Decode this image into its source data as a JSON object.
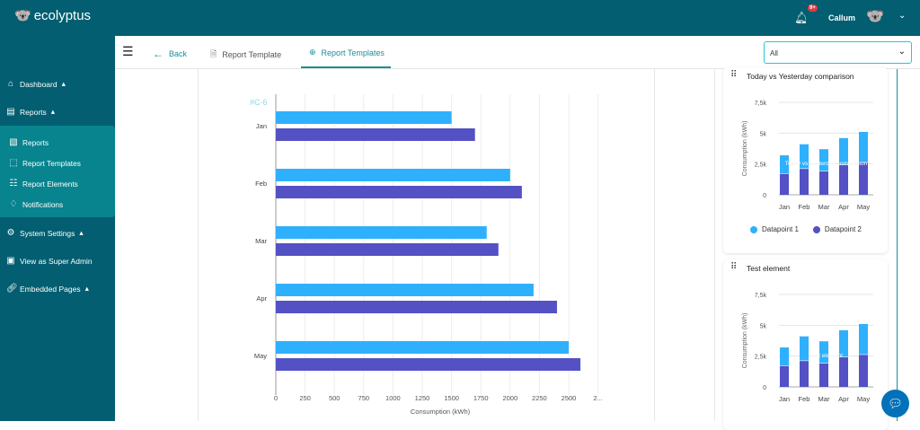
{
  "app": {
    "name": "ecolyptus",
    "user": "Callum",
    "notification_badge": "9+"
  },
  "sidebar": {
    "items": [
      {
        "label": "Dashboard",
        "icon": "home-icon"
      },
      {
        "label": "Reports",
        "icon": "report-icon"
      },
      {
        "label": "System Settings",
        "icon": "gear-icon"
      },
      {
        "label": "View as Super Admin",
        "icon": "badge-icon"
      },
      {
        "label": "Embedded Pages",
        "icon": "link-icon"
      }
    ],
    "sub_items": [
      {
        "label": "Reports",
        "icon": "report-file-icon"
      },
      {
        "label": "Report Templates",
        "icon": "template-icon"
      },
      {
        "label": "Report Elements",
        "icon": "list-icon"
      },
      {
        "label": "Notifications",
        "icon": "bell-icon"
      }
    ]
  },
  "toolbar": {
    "back": "Back",
    "report_template": "Report Template",
    "report_templates": "Report Templates",
    "filter_value": "All"
  },
  "colors": {
    "brand": "#025e70",
    "datapoint1": "#2eb0fd",
    "datapoint2": "#5351c4"
  },
  "chart_data": [
    {
      "type": "bar",
      "orientation": "horizontal",
      "element_id": "#C-6",
      "categories": [
        "Jan",
        "Feb",
        "Mar",
        "Apr",
        "May"
      ],
      "series": [
        {
          "values": [
            1500,
            2000,
            1800,
            2200,
            2500
          ]
        },
        {
          "values": [
            1700,
            2100,
            1900,
            2400,
            2600
          ]
        }
      ],
      "xlabel": "Consumption (kWh)",
      "xticks": [
        "0",
        "250",
        "500",
        "750",
        "1000",
        "1250",
        "1500",
        "1750",
        "2000",
        "2250",
        "2500",
        "2..."
      ],
      "xlim": [
        0,
        2750
      ],
      "grid": true
    },
    {
      "type": "bar",
      "stacked": true,
      "title": "Today vs Yesterday comparison",
      "watermark": "Today vs Yesterday comparison",
      "categories": [
        "Jan",
        "Feb",
        "Mar",
        "Apr",
        "May"
      ],
      "series": [
        {
          "name": "Datapoint 1",
          "values": [
            1500,
            2000,
            1800,
            2200,
            2500
          ]
        },
        {
          "name": "Datapoint 2",
          "values": [
            1700,
            2100,
            1900,
            2400,
            2600
          ]
        }
      ],
      "ylabel": "Consumption (kWh)",
      "yticks": [
        "0",
        "2,5k",
        "5k",
        "7,5k"
      ],
      "ylim": [
        0,
        7500
      ],
      "legend": "bottom"
    },
    {
      "type": "bar",
      "stacked": true,
      "title": "Test element",
      "watermark": "Test element",
      "categories": [
        "Jan",
        "Feb",
        "Mar",
        "Apr",
        "May"
      ],
      "series": [
        {
          "name": "Datapoint 1",
          "values": [
            1500,
            2000,
            1800,
            2200,
            2500
          ]
        },
        {
          "name": "Datapoint 2",
          "values": [
            1700,
            2100,
            1900,
            2400,
            2600
          ]
        }
      ],
      "ylabel": "Consumption (kWh)",
      "yticks": [
        "0",
        "2,5k",
        "5k",
        "7,5k"
      ],
      "ylim": [
        0,
        7500
      ]
    }
  ]
}
